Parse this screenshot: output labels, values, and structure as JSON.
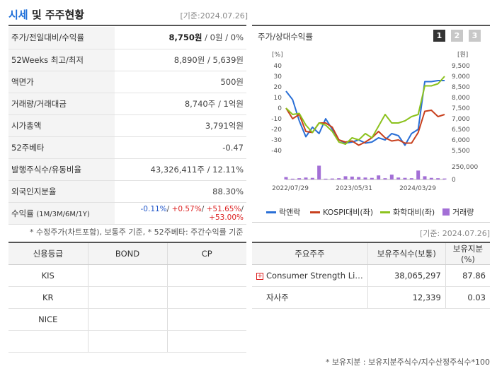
{
  "header": {
    "title_part1": "시세",
    "title_part2": " 및 주주현황",
    "base_date": "[기준:2024.07.26]"
  },
  "info_rows": [
    {
      "key": "주가/전일대비/수익률",
      "value_html_parts": [
        "8,750원",
        " / 0원 / 0%"
      ]
    },
    {
      "key": "52Weeks 최고/최저",
      "value": "8,890원 / 5,639원"
    },
    {
      "key": "액면가",
      "value": "500원"
    },
    {
      "key": "거래량/거래대금",
      "value": "8,740주 / 1억원"
    },
    {
      "key": "시가총액",
      "value": "3,791억원"
    },
    {
      "key": "52주베타",
      "value": "-0.47"
    },
    {
      "key": "발행주식수/유동비율",
      "value": "43,326,411주 / 12.11%"
    },
    {
      "key": "외국인지분율",
      "value": "88.30%"
    }
  ],
  "returns": {
    "key": "수익률",
    "key_sub": "(1M/3M/6M/1Y)",
    "v1": "-0.11%",
    "v2": "+0.57%",
    "v3": "+51.65%",
    "v4": "+53.00%",
    "sep": "/ "
  },
  "note1": "* 수정주가(차트포함), 보통주 기준, * 52주베타: 주간수익률 기준",
  "chart_panel": {
    "title": "주가/상대수익률",
    "pages": [
      "1",
      "2",
      "3"
    ],
    "base_date": "[기준: 2024.07.26]"
  },
  "chart_data": {
    "type": "line",
    "left_unit": "[%]",
    "right_unit": "[원]",
    "left_ticks": [
      "40",
      "30",
      "20",
      "10",
      "0",
      "-10",
      "-20",
      "-30",
      "-40"
    ],
    "right_ticks": [
      "9,500",
      "9,000",
      "8,500",
      "8,000",
      "7,500",
      "7,000",
      "6,500",
      "6,000",
      "5,500"
    ],
    "volume_ticks": [
      "250,000",
      "0"
    ],
    "x_labels": [
      "2022/07/29",
      "2023/05/31",
      "2024/03/29"
    ],
    "ylim_left": [
      -40,
      40
    ],
    "ylim_right": [
      5500,
      9500
    ],
    "series": [
      {
        "name": "락앤락",
        "color": "#2a6fd6",
        "values": [
          16,
          8,
          -12,
          -27,
          -18,
          -24,
          -10,
          -20,
          -30,
          -33,
          -32,
          -30,
          -33,
          -32,
          -28,
          -30,
          -24,
          -26,
          -35,
          -24,
          -20,
          25,
          25,
          26,
          26
        ]
      },
      {
        "name": "KOSPI대비(좌)",
        "color": "#c8401e",
        "values": [
          0,
          -10,
          -6,
          -22,
          -23,
          -14,
          -14,
          -18,
          -30,
          -32,
          -31,
          -35,
          -32,
          -28,
          -22,
          -28,
          -31,
          -30,
          -33,
          -33,
          -23,
          -3,
          -2,
          -8,
          -6
        ]
      },
      {
        "name": "화학대비(좌)",
        "color": "#8cc21e",
        "values": [
          0,
          -6,
          -5,
          -16,
          -23,
          -14,
          -16,
          -22,
          -32,
          -34,
          -28,
          -30,
          -24,
          -28,
          -17,
          -6,
          -14,
          -14,
          -12,
          -8,
          -6,
          21,
          21,
          23,
          30
        ]
      },
      {
        "name": "거래량",
        "color": "#a36fd6",
        "volumes": [
          15,
          5,
          8,
          12,
          10,
          85,
          5,
          6,
          8,
          20,
          18,
          15,
          12,
          10,
          25,
          8,
          30,
          12,
          10,
          8,
          55,
          20,
          10,
          8,
          6
        ]
      }
    ]
  },
  "credit_table": {
    "headers": [
      "신용등급",
      "BOND",
      "CP"
    ],
    "rows": [
      [
        "KIS",
        "",
        ""
      ],
      [
        "KR",
        "",
        ""
      ],
      [
        "NICE",
        "",
        ""
      ],
      [
        "",
        "",
        ""
      ]
    ]
  },
  "holders_table": {
    "headers": [
      "주요주주",
      "보유주식수(보통)",
      "보유지분(%)"
    ],
    "rows": [
      [
        "Consumer Strength Li…",
        "38,065,297",
        "87.86"
      ],
      [
        "자사주",
        "12,339",
        "0.03"
      ]
    ]
  },
  "note2": "* 보유지분 : 보유지분주식수/지수산정주식수*100"
}
